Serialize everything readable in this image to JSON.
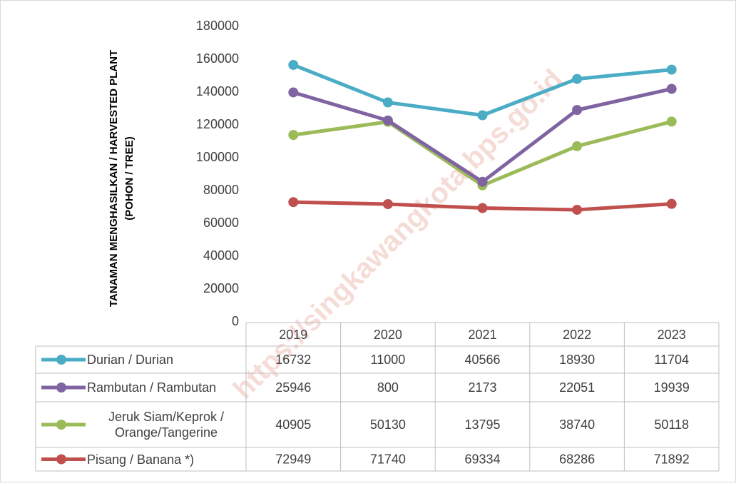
{
  "chart_data": {
    "type": "line",
    "stacked": true,
    "y_label": [
      "TANAMAN MENGHASILKAN / HARVESTED PLANT",
      "(POHON / TREE)"
    ],
    "watermark": "https://singkawangkota.bps.go.id",
    "categories": [
      "2019",
      "2020",
      "2021",
      "2022",
      "2023"
    ],
    "series": [
      {
        "name": "Durian / Durian",
        "color": "#4bacc6",
        "values": [
          16732,
          11000,
          40566,
          18930,
          11704
        ]
      },
      {
        "name": "Rambutan / Rambutan",
        "color": "#8064a2",
        "values": [
          25946,
          800,
          2173,
          22051,
          19939
        ]
      },
      {
        "name": "Jeruk Siam/Keprok / Orange/Tangerine",
        "color": "#9bbb59",
        "values": [
          40905,
          50130,
          13795,
          38740,
          50118
        ]
      },
      {
        "name": "Pisang / Banana *)",
        "color": "#c0504d",
        "values": [
          72949,
          71740,
          69334,
          68286,
          71892
        ]
      }
    ],
    "ylim": [
      0,
      180000
    ],
    "yticks": [
      0,
      20000,
      40000,
      60000,
      80000,
      100000,
      120000,
      140000,
      160000,
      180000
    ],
    "grid": false,
    "data_table": true
  }
}
